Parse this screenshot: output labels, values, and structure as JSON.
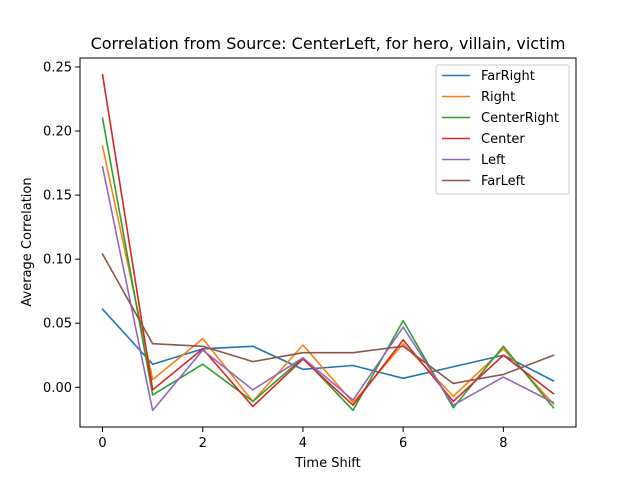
{
  "chart_data": {
    "type": "line",
    "title": "Correlation from Source: CenterLeft, for hero, villain, victim",
    "xlabel": "Time Shift",
    "ylabel": "Average Correlation",
    "x": [
      0,
      1,
      2,
      3,
      4,
      5,
      6,
      7,
      8,
      9
    ],
    "xlim": [
      -0.45,
      9.45
    ],
    "ylim": [
      -0.031,
      0.257
    ],
    "xticks": [
      0,
      2,
      4,
      6,
      8
    ],
    "yticks": [
      0.0,
      0.05,
      0.1,
      0.15,
      0.2,
      0.25
    ],
    "xtick_labels": [
      "0",
      "2",
      "4",
      "6",
      "8"
    ],
    "ytick_labels": [
      "0.00",
      "0.05",
      "0.10",
      "0.15",
      "0.20",
      "0.25"
    ],
    "grid": false,
    "legend_position": "top-right",
    "series": [
      {
        "name": "FarRight",
        "color": "#1f77b4",
        "values": [
          0.061,
          0.018,
          0.03,
          0.032,
          0.014,
          0.017,
          0.007,
          0.016,
          0.025,
          0.005
        ]
      },
      {
        "name": "Right",
        "color": "#ff7f0e",
        "values": [
          0.188,
          0.006,
          0.038,
          -0.011,
          0.033,
          -0.012,
          0.034,
          -0.007,
          0.03,
          -0.013
        ]
      },
      {
        "name": "CenterRight",
        "color": "#2ca02c",
        "values": [
          0.21,
          -0.006,
          0.018,
          -0.011,
          0.023,
          -0.018,
          0.052,
          -0.016,
          0.032,
          -0.016
        ]
      },
      {
        "name": "Center",
        "color": "#d62728",
        "values": [
          0.244,
          -0.002,
          0.03,
          -0.015,
          0.022,
          -0.014,
          0.037,
          -0.011,
          0.025,
          -0.005
        ]
      },
      {
        "name": "Left",
        "color": "#9467bd",
        "values": [
          0.172,
          -0.018,
          0.029,
          -0.002,
          0.023,
          -0.01,
          0.047,
          -0.014,
          0.008,
          -0.012
        ]
      },
      {
        "name": "FarLeft",
        "color": "#8c564b",
        "values": [
          0.104,
          0.034,
          0.032,
          0.02,
          0.027,
          0.027,
          0.032,
          0.003,
          0.01,
          0.025
        ]
      }
    ]
  }
}
